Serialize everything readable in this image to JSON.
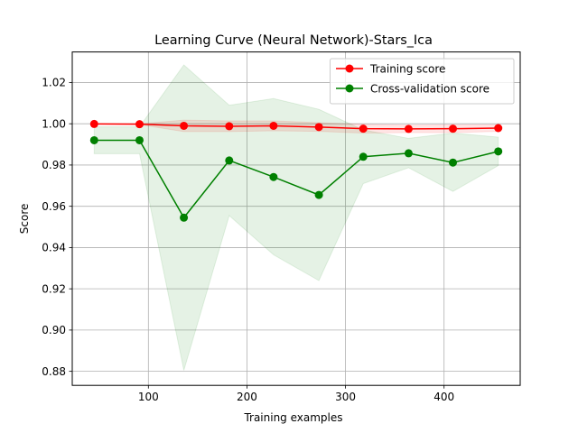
{
  "chart_data": {
    "type": "line",
    "title": "Learning Curve (Neural Network)-Stars_Ica",
    "xlabel": "Training examples",
    "ylabel": "Score",
    "xlim": [
      22.75,
      477.25
    ],
    "ylim": [
      0.8732,
      1.0348
    ],
    "xticks": [
      100,
      200,
      300,
      400
    ],
    "yticks": [
      0.88,
      0.9,
      0.92,
      0.94,
      0.96,
      0.98,
      1.0,
      1.02
    ],
    "ytick_labels": [
      "0.88",
      "0.90",
      "0.92",
      "0.94",
      "0.96",
      "0.98",
      "1.00",
      "1.02"
    ],
    "grid": true,
    "legend_position": "top-right",
    "x": [
      45,
      91,
      136,
      182,
      227,
      273,
      318,
      364,
      409,
      455
    ],
    "series": [
      {
        "name": "Training score",
        "color": "#ff0000",
        "values": [
          0.9999,
          0.9998,
          0.999,
          0.9988,
          0.999,
          0.9984,
          0.9976,
          0.9975,
          0.9976,
          0.9979
        ],
        "band_lower": [
          0.9998,
          0.9996,
          0.9962,
          0.9962,
          0.9966,
          0.9963,
          0.9955,
          0.9957,
          0.9957,
          0.9963
        ],
        "band_upper": [
          1.0,
          1.0,
          1.0018,
          1.0014,
          1.0014,
          1.0005,
          0.9997,
          0.9993,
          0.9995,
          0.9995
        ]
      },
      {
        "name": "Cross-validation score",
        "color": "#008000",
        "values": [
          0.992,
          0.992,
          0.9545,
          0.9822,
          0.9742,
          0.9655,
          0.984,
          0.9857,
          0.9812,
          0.9866
        ],
        "band_lower": [
          0.9855,
          0.9855,
          0.8805,
          0.9555,
          0.9365,
          0.924,
          0.971,
          0.9787,
          0.9672,
          0.9797
        ],
        "band_upper": [
          0.9985,
          0.9985,
          1.0285,
          1.009,
          1.0122,
          1.007,
          0.997,
          0.9929,
          0.9955,
          0.9935
        ]
      }
    ]
  }
}
